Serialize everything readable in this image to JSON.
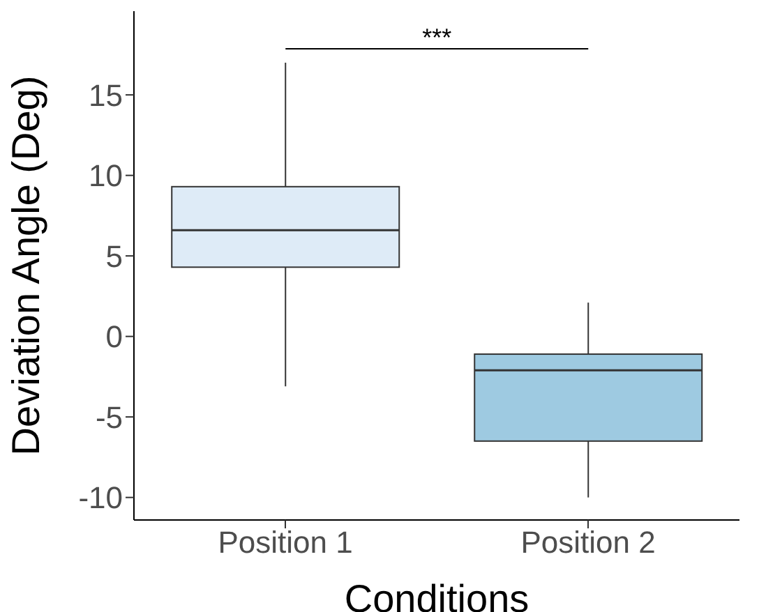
{
  "chart_data": {
    "type": "box",
    "xlabel": "Conditions",
    "ylabel": "Deviation Angle (Deg)",
    "categories": [
      "Position 1",
      "Position 2"
    ],
    "boxes": [
      {
        "low": -3.1,
        "q1": 4.3,
        "median": 6.6,
        "q3": 9.3,
        "high": 17.0
      },
      {
        "low": -10.0,
        "q1": -6.5,
        "median": -2.1,
        "q3": -1.1,
        "high": 2.1
      }
    ],
    "colors": [
      "#deebf7",
      "#9ecae1"
    ],
    "ylim": [
      -11.4,
      20.2
    ],
    "yticks": [
      -10,
      -5,
      0,
      5,
      10,
      15
    ],
    "grid": false,
    "legend": false,
    "annotations": [
      "***"
    ]
  }
}
